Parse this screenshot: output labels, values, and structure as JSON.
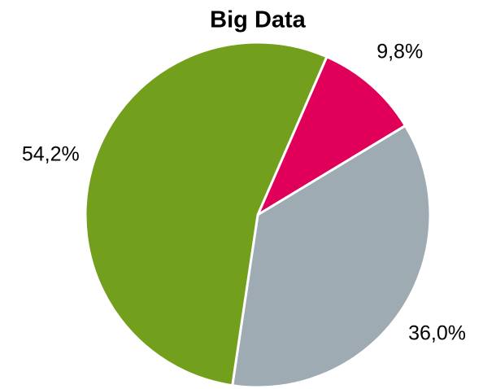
{
  "chart_data": {
    "type": "pie",
    "title": "Big Data",
    "values": [
      9.8,
      36.0,
      54.2
    ],
    "value_labels": [
      "9,8%",
      "36,0%",
      "54,2%"
    ],
    "colors": [
      "#e0005a",
      "#9eabb3",
      "#72a01d"
    ]
  }
}
